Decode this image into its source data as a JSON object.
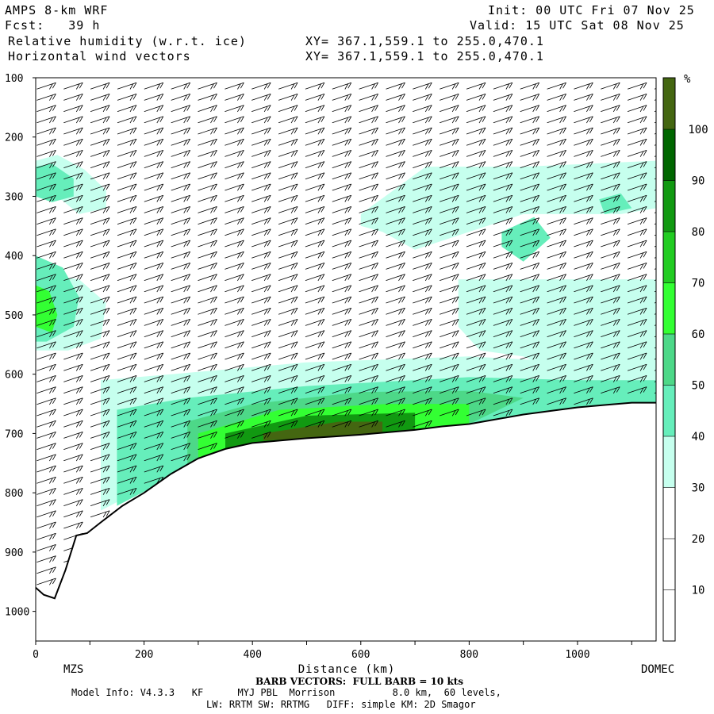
{
  "header": {
    "model": "AMPS 8-km WRF",
    "fcst": "Fcst:   39 h",
    "field1": "Relative humidity (w.r.t. ice)",
    "field2": "Horizontal wind vectors",
    "xy1": "XY= 367.1,559.1 to 255.0,470.1",
    "xy2": "XY= 367.1,559.1 to 255.0,470.1",
    "init": "Init: 00 UTC Fri 07 Nov 25",
    "valid": "Valid: 15 UTC Sat 08 Nov 25"
  },
  "footer": {
    "barb": "BARB VECTORS:  FULL BARB = 10 kts",
    "model_info": "Model Info: V4.3.3   KF      MYJ PBL  Morrison          8.0 km,  60 levels,",
    "physics": "LW: RRTM SW: RRTMG   DIFF: simple KM: 2D Smagor"
  },
  "chart_data": {
    "type": "heatmap",
    "title": "Relative humidity (w.r.t. ice)",
    "xlabel": "Distance (km)",
    "ylabel": "",
    "xlim": [
      0,
      1145
    ],
    "ylim": [
      1050,
      100
    ],
    "x_ticks": [
      0,
      200,
      400,
      600,
      800,
      1000
    ],
    "x_tick_labels": [
      "0",
      "200",
      "400",
      "600",
      "800",
      "1000"
    ],
    "y_ticks": [
      100,
      200,
      300,
      400,
      500,
      600,
      700,
      800,
      900,
      1000
    ],
    "y_tick_labels": [
      "100",
      "200",
      "300",
      "400",
      "500",
      "600",
      "700",
      "800",
      "900",
      "1000"
    ],
    "x_endpoint_labels": {
      "left": "MZS",
      "right": "DOMEC"
    },
    "colorbar": {
      "unit": "%",
      "bounds": [
        30,
        40,
        50,
        60,
        70,
        80,
        90,
        100
      ],
      "tick_labels": [
        "10",
        "20",
        "30",
        "40",
        "50",
        "60",
        "70",
        "80",
        "90",
        "100"
      ],
      "colors": [
        "#c6ffee",
        "#66eebb",
        "#4dd888",
        "#33ff33",
        "#22cc22",
        "#119911",
        "#006600",
        "#446611"
      ]
    },
    "terrain_surface": {
      "x": [
        0,
        15,
        35,
        55,
        75,
        95,
        120,
        160,
        200,
        250,
        300,
        350,
        400,
        450,
        500,
        550,
        600,
        650,
        700,
        750,
        800,
        850,
        900,
        950,
        1000,
        1050,
        1100,
        1145
      ],
      "p": [
        960,
        972,
        978,
        930,
        872,
        868,
        850,
        822,
        800,
        768,
        742,
        726,
        716,
        712,
        708,
        705,
        702,
        698,
        694,
        688,
        684,
        676,
        668,
        662,
        656,
        652,
        648,
        648
      ]
    },
    "rh_regions": [
      {
        "level": 30,
        "x": [
          0,
          40,
          90,
          130,
          130,
          80,
          40,
          0
        ],
        "p": [
          240,
          230,
          255,
          290,
          320,
          330,
          300,
          300
        ]
      },
      {
        "level": 40,
        "x": [
          0,
          30,
          70,
          70,
          30,
          0
        ],
        "p": [
          250,
          245,
          270,
          300,
          310,
          300
        ]
      },
      {
        "level": 30,
        "x": [
          0,
          80,
          130,
          120,
          60,
          0
        ],
        "p": [
          430,
          440,
          480,
          540,
          560,
          560
        ]
      },
      {
        "level": 40,
        "x": [
          0,
          50,
          80,
          70,
          20,
          0
        ],
        "p": [
          400,
          420,
          470,
          520,
          545,
          545
        ]
      },
      {
        "level": 60,
        "x": [
          0,
          25,
          40,
          30,
          0
        ],
        "p": [
          450,
          460,
          500,
          530,
          520
        ]
      },
      {
        "level": 30,
        "x": [
          600,
          720,
          900,
          1145,
          1145,
          1080,
          900,
          800,
          700,
          640,
          600
        ],
        "p": [
          330,
          250,
          250,
          240,
          320,
          330,
          330,
          360,
          390,
          360,
          350
        ]
      },
      {
        "level": 40,
        "x": [
          860,
          920,
          950,
          900,
          860
        ],
        "p": [
          360,
          335,
          370,
          410,
          385
        ]
      },
      {
        "level": 40,
        "x": [
          1040,
          1080,
          1100,
          1050
        ],
        "p": [
          305,
          295,
          320,
          330
        ]
      },
      {
        "level": 30,
        "x": [
          780,
          900,
          1145,
          1145,
          950,
          900,
          820,
          780
        ],
        "p": [
          440,
          440,
          440,
          590,
          590,
          570,
          560,
          520
        ]
      },
      {
        "level": 30,
        "x": [
          120,
          250,
          500,
          800,
          1000,
          1145,
          1145,
          1000,
          800,
          500,
          250,
          120
        ],
        "p": [
          610,
          600,
          580,
          570,
          580,
          580,
          648,
          656,
          684,
          708,
          768,
          830
        ]
      },
      {
        "level": 40,
        "x": [
          150,
          280,
          500,
          800,
          1000,
          1145,
          1145,
          1000,
          800,
          500,
          280,
          150
        ],
        "p": [
          660,
          640,
          620,
          605,
          610,
          610,
          648,
          656,
          684,
          708,
          760,
          822
        ]
      },
      {
        "level": 50,
        "x": [
          280,
          400,
          600,
          800,
          900,
          800,
          600,
          400,
          280
        ],
        "p": [
          680,
          650,
          630,
          628,
          640,
          684,
          702,
          716,
          752
        ]
      },
      {
        "level": 60,
        "x": [
          300,
          450,
          650,
          800,
          800,
          650,
          450,
          300
        ],
        "p": [
          700,
          660,
          650,
          650,
          684,
          698,
          712,
          745
        ]
      },
      {
        "level": 80,
        "x": [
          350,
          500,
          700,
          700,
          500,
          350
        ],
        "p": [
          700,
          670,
          665,
          694,
          708,
          726
        ]
      },
      {
        "level": 100,
        "x": [
          420,
          560,
          640,
          640,
          560,
          420
        ],
        "p": [
          700,
          680,
          680,
          700,
          705,
          712
        ]
      }
    ]
  }
}
